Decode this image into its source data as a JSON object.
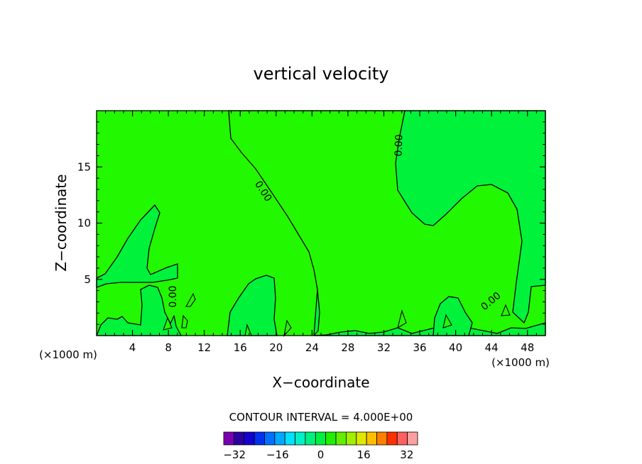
{
  "chart_data": {
    "type": "contour",
    "title": "vertical velocity",
    "xlabel": "X−coordinate",
    "ylabel": "Z−coordinate",
    "x_unit_left": "(×1000 m)",
    "x_unit_right": "(×1000 m)",
    "xlim": [
      0,
      50
    ],
    "ylim": [
      0,
      20
    ],
    "xticks": [
      4,
      8,
      12,
      16,
      20,
      24,
      28,
      32,
      36,
      40,
      44,
      48
    ],
    "yticks": [
      5,
      10,
      15
    ],
    "contour_label": "0.00",
    "contour_interval_text": "CONTOUR INTERVAL = 4.000E+00",
    "colorbar": {
      "levels": [
        -36,
        -32,
        -28,
        -24,
        -20,
        -16,
        -12,
        -8,
        -4,
        0,
        4,
        8,
        12,
        16,
        20,
        24,
        28,
        32,
        36
      ],
      "tick_labels": [
        "−32",
        "−16",
        "0",
        "16",
        "32"
      ],
      "tick_values": [
        -32,
        -16,
        0,
        16,
        32
      ],
      "colors": [
        "#7a00b0",
        "#2a00a0",
        "#1400d0",
        "#0030f0",
        "#0070ff",
        "#00a8ff",
        "#00e0ff",
        "#00f0c8",
        "#00f080",
        "#00f040",
        "#20f000",
        "#60f000",
        "#a0f000",
        "#e0e800",
        "#ffc000",
        "#ff8000",
        "#ff3000",
        "#ff6060",
        "#ffa0a0"
      ]
    },
    "fill_colors": {
      "positive": "#22f800",
      "negative": "#00f23a"
    }
  }
}
